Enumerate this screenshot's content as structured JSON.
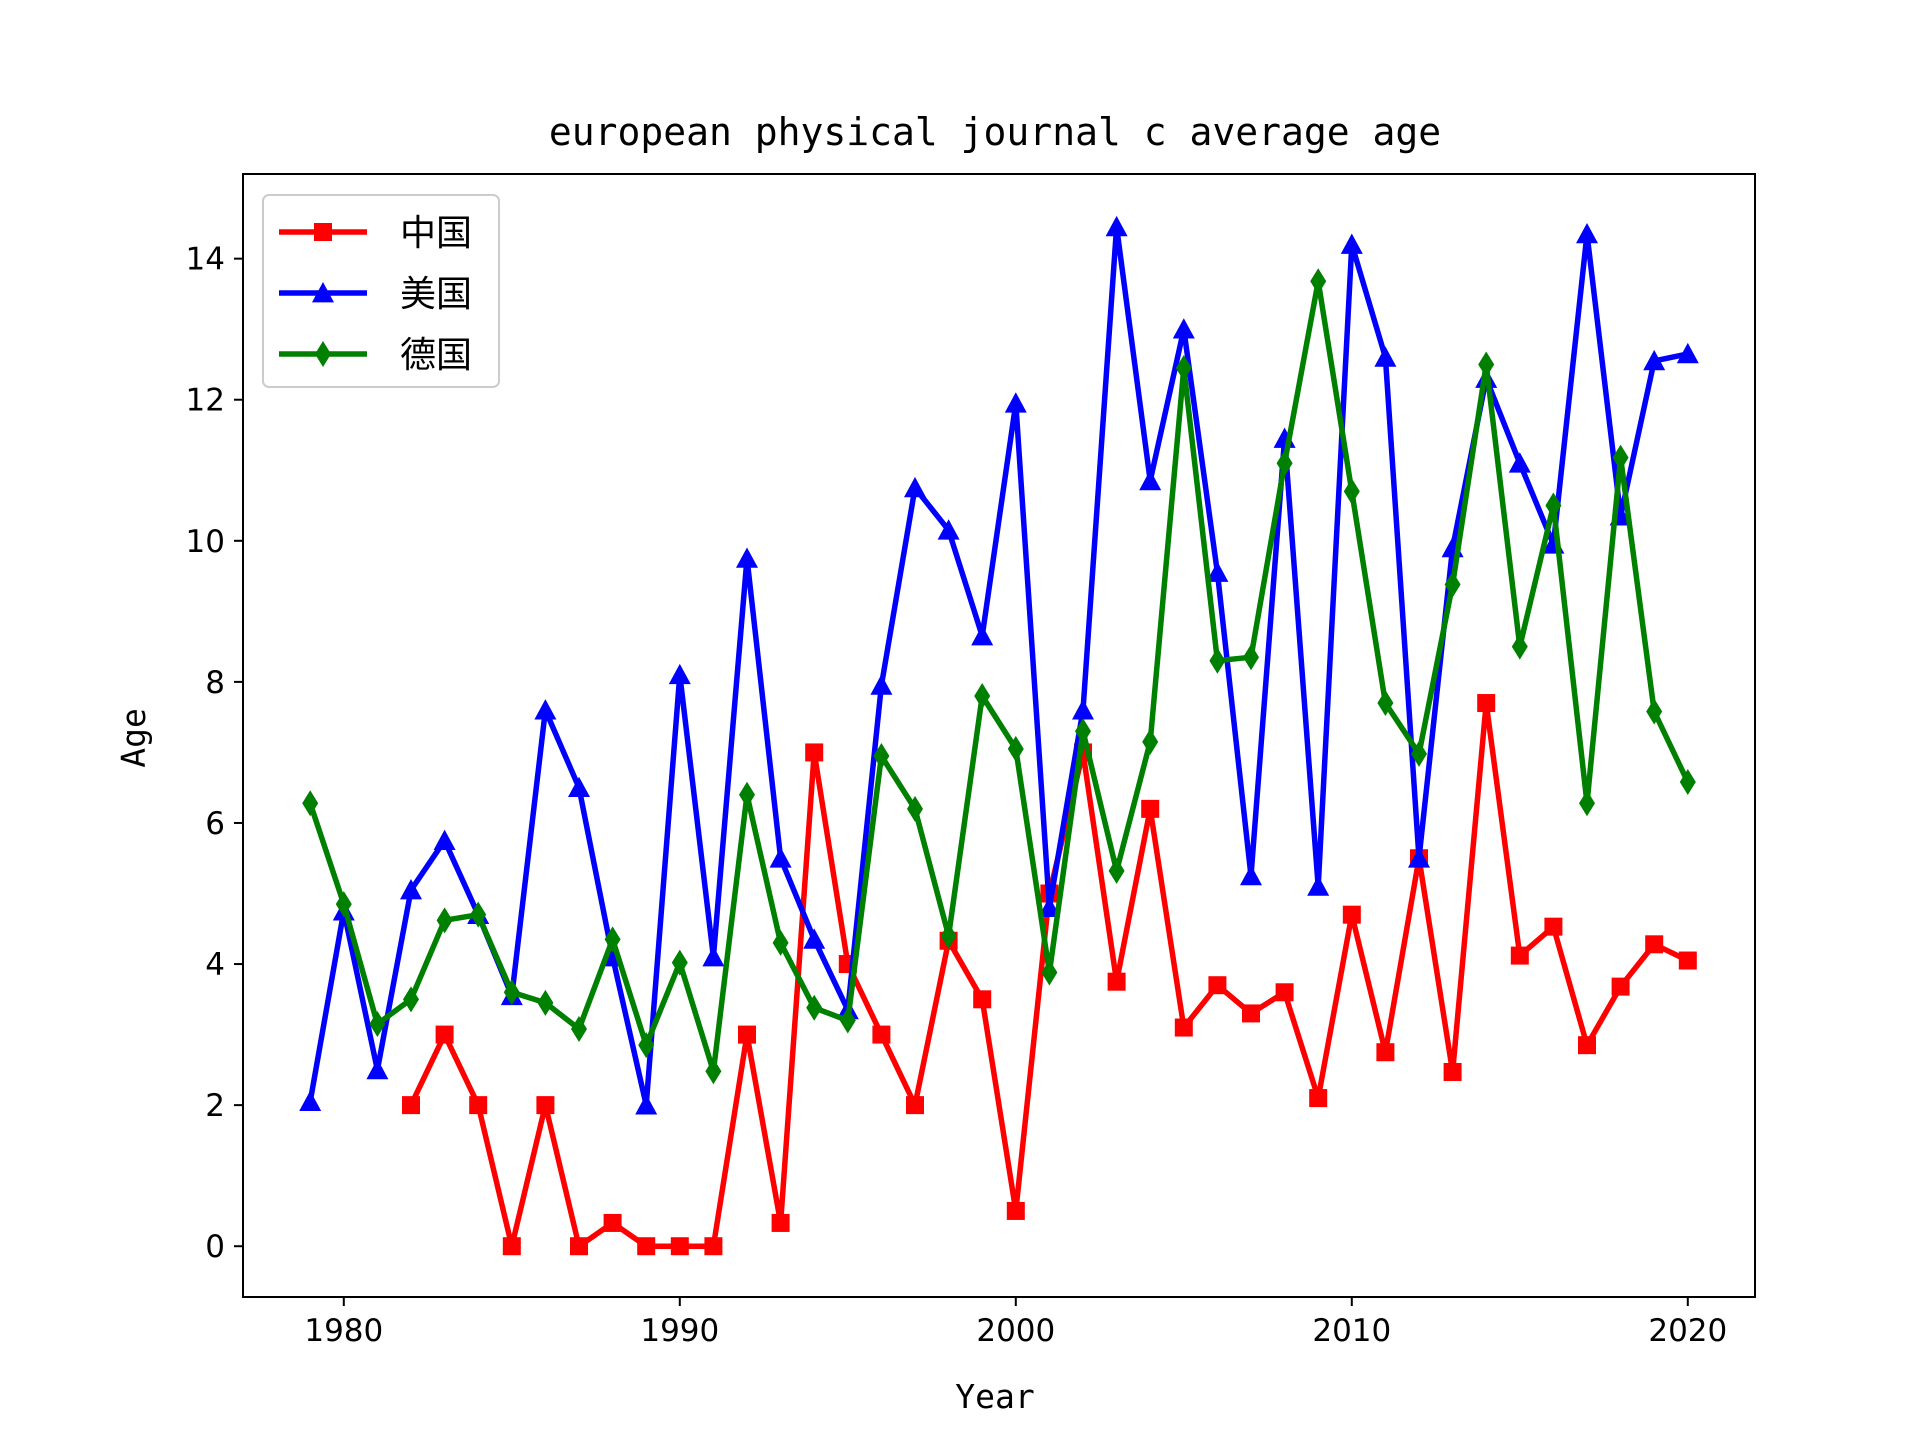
{
  "chart_data": {
    "type": "line",
    "title": "european physical journal c average age",
    "xlabel": "Year",
    "ylabel": "Age",
    "xlim": [
      1977,
      2022
    ],
    "ylim": [
      -0.72,
      15.2
    ],
    "xticks": [
      1980,
      1990,
      2000,
      2010,
      2020
    ],
    "yticks": [
      0,
      2,
      4,
      6,
      8,
      10,
      12,
      14
    ],
    "grid": false,
    "legend_position": "top-left",
    "series": [
      {
        "name": "中国",
        "color": "#ff0000",
        "marker": "square",
        "points": [
          [
            1982,
            2.0
          ],
          [
            1983,
            3.0
          ],
          [
            1984,
            2.0
          ],
          [
            1985,
            0.0
          ],
          [
            1986,
            2.0
          ],
          [
            1987,
            0.0
          ],
          [
            1988,
            0.33
          ],
          [
            1989,
            0.0
          ],
          [
            1990,
            0.0
          ],
          [
            1991,
            0.0
          ],
          [
            1992,
            3.0
          ],
          [
            1993,
            0.33
          ],
          [
            1994,
            7.0
          ],
          [
            1995,
            4.0
          ],
          [
            1996,
            3.0
          ],
          [
            1997,
            2.0
          ],
          [
            1998,
            4.33
          ],
          [
            1999,
            3.5
          ],
          [
            2000,
            0.5
          ],
          [
            2001,
            5.0
          ],
          [
            2002,
            7.0
          ],
          [
            2003,
            3.75
          ],
          [
            2004,
            6.2
          ],
          [
            2005,
            3.1
          ],
          [
            2006,
            3.7
          ],
          [
            2007,
            3.3
          ],
          [
            2008,
            3.6
          ],
          [
            2009,
            2.1
          ],
          [
            2010,
            4.7
          ],
          [
            2011,
            2.75
          ],
          [
            2012,
            5.5
          ],
          [
            2013,
            2.47
          ],
          [
            2014,
            7.7
          ],
          [
            2015,
            4.12
          ],
          [
            2016,
            4.53
          ],
          [
            2017,
            2.85
          ],
          [
            2018,
            3.68
          ],
          [
            2019,
            4.28
          ],
          [
            2020,
            4.05
          ]
        ]
      },
      {
        "name": "美国",
        "color": "#0000ff",
        "marker": "triangle",
        "points": [
          [
            1979,
            2.05
          ],
          [
            1980,
            4.75
          ],
          [
            1981,
            2.5
          ],
          [
            1982,
            5.05
          ],
          [
            1983,
            5.75
          ],
          [
            1984,
            4.7
          ],
          [
            1985,
            3.55
          ],
          [
            1986,
            7.6
          ],
          [
            1987,
            6.5
          ],
          [
            1988,
            4.1
          ],
          [
            1989,
            2.0
          ],
          [
            1990,
            8.1
          ],
          [
            1991,
            4.1
          ],
          [
            1992,
            9.75
          ],
          [
            1993,
            5.5
          ],
          [
            1994,
            4.35
          ],
          [
            1995,
            3.35
          ],
          [
            1996,
            7.95
          ],
          [
            1997,
            10.75
          ],
          [
            1998,
            10.15
          ],
          [
            1999,
            8.65
          ],
          [
            2000,
            11.95
          ],
          [
            2001,
            4.8
          ],
          [
            2002,
            7.6
          ],
          [
            2003,
            14.45
          ],
          [
            2004,
            10.85
          ],
          [
            2005,
            13.0
          ],
          [
            2006,
            9.55
          ],
          [
            2007,
            5.25
          ],
          [
            2008,
            11.45
          ],
          [
            2009,
            5.1
          ],
          [
            2010,
            14.2
          ],
          [
            2011,
            12.6
          ],
          [
            2012,
            5.5
          ],
          [
            2013,
            9.9
          ],
          [
            2014,
            12.3
          ],
          [
            2015,
            11.1
          ],
          [
            2016,
            9.95
          ],
          [
            2017,
            14.35
          ],
          [
            2018,
            10.35
          ],
          [
            2019,
            12.55
          ],
          [
            2020,
            12.65
          ]
        ]
      },
      {
        "name": "德国",
        "color": "#008000",
        "marker": "diamond",
        "points": [
          [
            1979,
            6.28
          ],
          [
            1980,
            4.85
          ],
          [
            1981,
            3.15
          ],
          [
            1982,
            3.5
          ],
          [
            1983,
            4.62
          ],
          [
            1984,
            4.7
          ],
          [
            1985,
            3.6
          ],
          [
            1986,
            3.45
          ],
          [
            1987,
            3.08
          ],
          [
            1988,
            4.35
          ],
          [
            1989,
            2.85
          ],
          [
            1990,
            4.02
          ],
          [
            1991,
            2.48
          ],
          [
            1992,
            6.4
          ],
          [
            1993,
            4.3
          ],
          [
            1994,
            3.38
          ],
          [
            1995,
            3.2
          ],
          [
            1996,
            6.95
          ],
          [
            1997,
            6.2
          ],
          [
            1998,
            4.4
          ],
          [
            1999,
            7.8
          ],
          [
            2000,
            7.05
          ],
          [
            2001,
            3.88
          ],
          [
            2002,
            7.3
          ],
          [
            2003,
            5.32
          ],
          [
            2004,
            7.15
          ],
          [
            2005,
            12.45
          ],
          [
            2006,
            8.3
          ],
          [
            2007,
            8.35
          ],
          [
            2008,
            11.1
          ],
          [
            2009,
            13.68
          ],
          [
            2010,
            10.7
          ],
          [
            2011,
            7.7
          ],
          [
            2012,
            6.98
          ],
          [
            2013,
            9.38
          ],
          [
            2014,
            12.5
          ],
          [
            2015,
            8.5
          ],
          [
            2016,
            10.5
          ],
          [
            2017,
            6.28
          ],
          [
            2018,
            11.18
          ],
          [
            2019,
            7.58
          ],
          [
            2020,
            6.58
          ]
        ]
      }
    ]
  }
}
